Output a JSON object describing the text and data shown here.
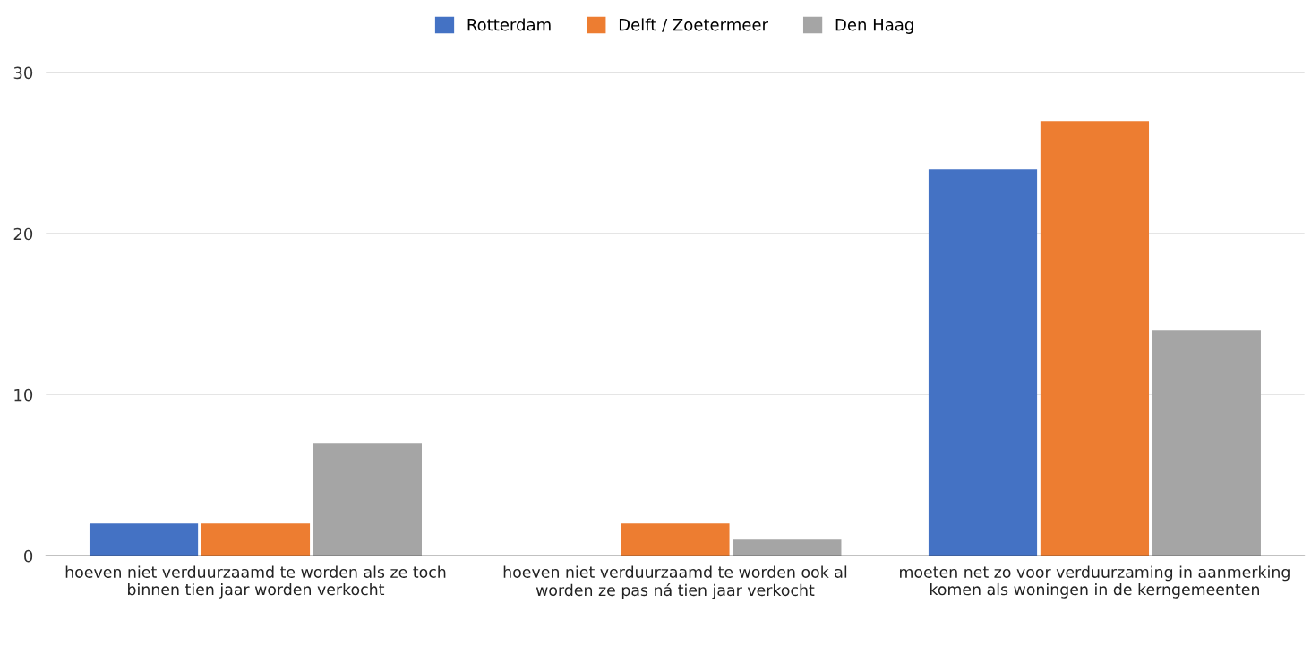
{
  "chart_data": {
    "type": "bar",
    "categories": [
      "hoeven niet verduurzaamd te worden als ze toch binnen tien jaar worden verkocht",
      "hoeven niet verduurzaamd te worden ook al worden ze pas ná tien jaar verkocht",
      "moeten net zo voor verduurzaming in aanmerking komen als woningen in de kerngemeenten"
    ],
    "series": [
      {
        "name": "Rotterdam",
        "color": "#4472c4",
        "values": [
          2,
          0,
          24
        ]
      },
      {
        "name": "Delft / Zoetermeer",
        "color": "#ed7d31",
        "values": [
          2,
          2,
          27
        ]
      },
      {
        "name": "Den Haag",
        "color": "#a5a5a5",
        "values": [
          7,
          1,
          14
        ]
      }
    ],
    "ylim": [
      0,
      30
    ],
    "yticks": [
      0,
      10,
      20,
      30
    ],
    "grid": "y",
    "legend": "top"
  }
}
